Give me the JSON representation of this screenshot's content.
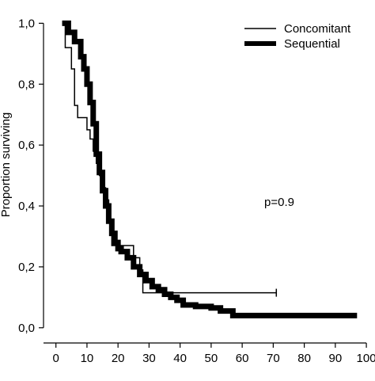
{
  "chart_data": {
    "type": "line",
    "step": true,
    "ylabel": "Proportion surviving",
    "xlabel": "",
    "xlim": [
      -4,
      101
    ],
    "ylim": [
      -0.05,
      1.04
    ],
    "xticks": [
      0,
      10,
      20,
      30,
      40,
      50,
      60,
      70,
      80,
      90,
      100
    ],
    "xtick_labels": [
      "0",
      "10",
      "20",
      "30",
      "40",
      "50",
      "60",
      "70",
      "80",
      "90",
      "100"
    ],
    "yticks": [
      0.0,
      0.2,
      0.4,
      0.6,
      0.8,
      1.0
    ],
    "ytick_labels": [
      "0,0",
      "0,2",
      "0,4",
      "0,6",
      "0,8",
      "1,0"
    ],
    "legend_position": "top-right",
    "annotation": "p=0.9",
    "series": [
      {
        "name": "Concomitant",
        "line": "thin",
        "x": [
          2,
          3,
          5,
          6,
          7,
          10,
          11,
          12,
          13,
          14,
          15,
          16,
          17,
          18,
          19,
          20,
          25,
          27,
          28,
          40,
          71
        ],
        "y": [
          1.0,
          0.92,
          0.85,
          0.73,
          0.69,
          0.65,
          0.62,
          0.58,
          0.54,
          0.5,
          0.46,
          0.42,
          0.35,
          0.27,
          0.27,
          0.27,
          0.23,
          0.19,
          0.115,
          0.115,
          0.115
        ],
        "censored_x": [
          71
        ]
      },
      {
        "name": "Sequential",
        "line": "thick",
        "x": [
          2,
          4,
          6,
          8,
          9,
          10,
          11,
          12,
          13,
          14,
          15,
          16,
          17,
          18,
          19,
          20,
          21,
          23,
          25,
          27,
          29,
          31,
          33,
          35,
          37,
          39,
          41,
          45,
          50,
          53,
          57,
          97
        ],
        "y": [
          1.0,
          0.97,
          0.94,
          0.89,
          0.85,
          0.8,
          0.74,
          0.67,
          0.57,
          0.51,
          0.45,
          0.4,
          0.35,
          0.31,
          0.28,
          0.26,
          0.25,
          0.23,
          0.2,
          0.175,
          0.155,
          0.135,
          0.125,
          0.11,
          0.1,
          0.09,
          0.075,
          0.07,
          0.065,
          0.055,
          0.04,
          0.04
        ]
      }
    ]
  }
}
